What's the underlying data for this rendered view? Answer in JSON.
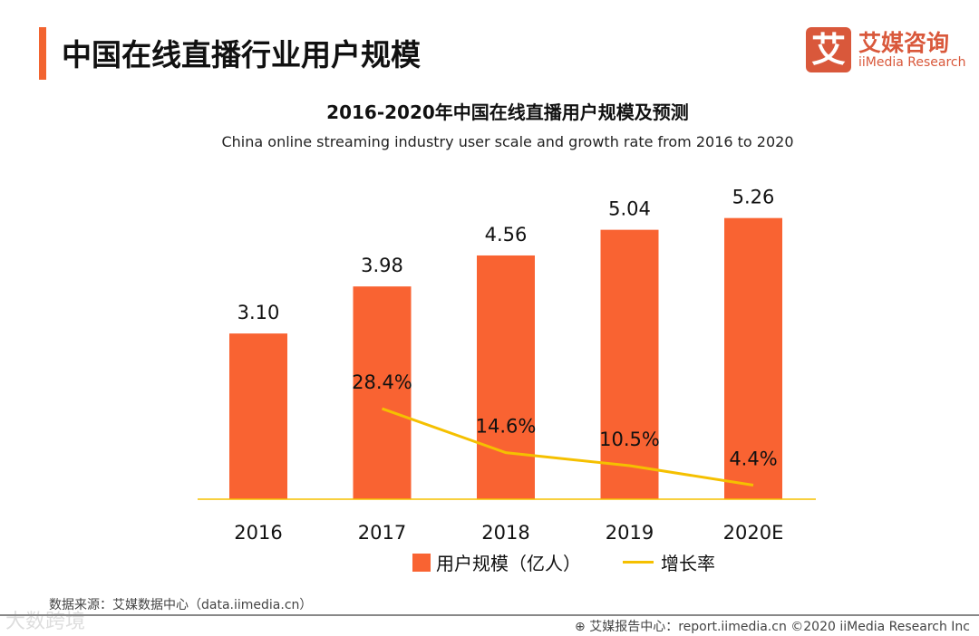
{
  "header": {
    "title": "中国在线直播行业用户规模"
  },
  "logo": {
    "mark": "艾",
    "cn": "艾媒咨询",
    "en": "iiMedia Research"
  },
  "chart_data": {
    "type": "bar",
    "title": "2016-2020年中国在线直播用户规模及预测",
    "subtitle": "China online streaming industry user scale and growth rate from 2016 to 2020",
    "categories": [
      "2016",
      "2017",
      "2018",
      "2019",
      "2020E"
    ],
    "series": [
      {
        "name": "用户规模（亿人）",
        "type": "bar",
        "color": "#f96332",
        "values": [
          3.1,
          3.98,
          4.56,
          5.04,
          5.26
        ],
        "labels": [
          "3.10",
          "3.98",
          "4.56",
          "5.04",
          "5.26"
        ]
      },
      {
        "name": "增长率",
        "type": "line",
        "color": "#f5c000",
        "values": [
          null,
          28.4,
          14.6,
          10.5,
          4.4
        ],
        "labels": [
          "",
          "28.4%",
          "14.6%",
          "10.5%",
          "4.4%"
        ]
      }
    ],
    "legend": "bottom"
  },
  "footer": {
    "source": "数据来源：艾媒数据中心（data.iimedia.cn）",
    "report": "⊕ 艾媒报告中心：report.iimedia.cn   ©2020  iiMedia Research  Inc",
    "watermark": "大数跨境"
  }
}
